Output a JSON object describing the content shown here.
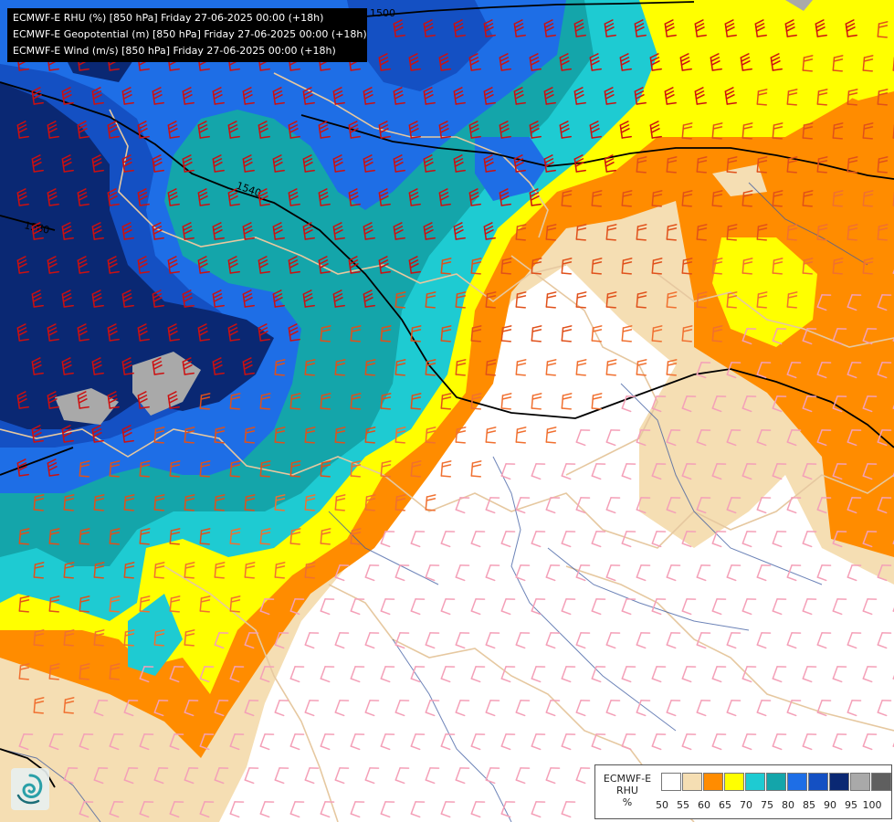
{
  "header": {
    "lines": [
      "ECMWF-E RHU (%) [850 hPa] Friday 27-06-2025 00:00 (+18h)",
      "ECMWF-E Geopotential (m) [850 hPa] Friday 27-06-2025 00:00 (+18h)",
      "ECMWF-E Wind (m/s) [850 hPa] Friday 27-06-2025 00:00 (+18h)"
    ]
  },
  "contours": {
    "labels": [
      "1500",
      "1540",
      "1560"
    ]
  },
  "legend": {
    "model": "ECMWF-E",
    "variable": "RHU",
    "unit": "%",
    "ticks": [
      "50",
      "55",
      "60",
      "65",
      "70",
      "75",
      "80",
      "85",
      "90",
      "95",
      "100"
    ],
    "colors": [
      "#ffffff",
      "#f5deb3",
      "#ff8c00",
      "#ffff00",
      "#1ecbd2",
      "#14a5aa",
      "#1e6ee6",
      "#1450c3",
      "#0a2873",
      "#a9a9a9",
      "#5f5f5f"
    ]
  },
  "colors": {
    "dry": "#ffffff",
    "tan": "#f5deb3",
    "orange": "#ff8c00",
    "yellow": "#ffff00",
    "cyan": "#1ecbd2",
    "teal": "#14a5aa",
    "blue": "#1e6ee6",
    "mid_blue": "#1450c3",
    "navy": "#0a2873",
    "gray": "#a9a9a9",
    "border": "#e6c8a0",
    "river": "#3c5aa0",
    "contour": "#000000"
  },
  "icons": {
    "logo": "meteo-swirl-logo",
    "wind": "wind-barb-icon"
  }
}
